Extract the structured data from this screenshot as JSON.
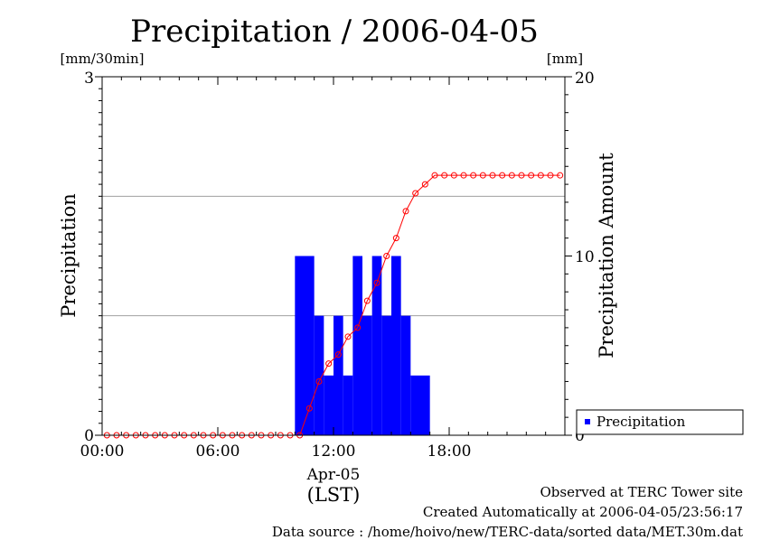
{
  "chart_data": {
    "type": "bar",
    "title": "Precipitation / 2006-04-05",
    "left_axis": {
      "label": "Precipitation",
      "unit": "[mm/30min]",
      "range": [
        0,
        3
      ],
      "ticks": [
        "0",
        "3"
      ],
      "gridlines": [
        1,
        2
      ]
    },
    "right_axis": {
      "label": "Precipitation Amount",
      "unit": "[mm]",
      "range": [
        0,
        20
      ],
      "ticks": [
        "0",
        "10",
        "20"
      ]
    },
    "x_axis": {
      "range_hours": [
        0,
        24
      ],
      "ticks": [
        {
          "hour": 0,
          "label": "00:00"
        },
        {
          "hour": 6,
          "label": "06:00"
        },
        {
          "hour": 12,
          "label": "12:00"
        },
        {
          "hour": 18,
          "label": "18:00"
        }
      ],
      "date_label": "Apr-05",
      "unit": "(LST)"
    },
    "series": [
      {
        "name": "Precipitation",
        "type": "bar",
        "axis": "left",
        "color": "#0000ff",
        "interval_hours": 0.5,
        "start_hours": [
          10.0,
          10.5,
          11.0,
          11.5,
          12.0,
          12.5,
          13.0,
          13.5,
          14.0,
          14.5,
          15.0,
          15.5,
          16.0,
          16.5
        ],
        "values": [
          1.5,
          1.5,
          1.0,
          0.5,
          1.0,
          0.5,
          1.5,
          1.0,
          1.5,
          1.0,
          1.5,
          1.0,
          0.5,
          0.5
        ]
      },
      {
        "type": "line",
        "axis": "right",
        "color": "#ff0000",
        "marker": "open-circle",
        "x_hours": [
          0.0,
          0.5,
          1.0,
          1.5,
          2.0,
          2.5,
          3.0,
          3.5,
          4.0,
          4.5,
          5.0,
          5.5,
          6.0,
          6.5,
          7.0,
          7.5,
          8.0,
          8.5,
          9.0,
          9.5,
          10.0,
          10.5,
          11.0,
          11.5,
          12.0,
          12.5,
          13.0,
          13.5,
          14.0,
          14.5,
          15.0,
          15.5,
          16.0,
          16.5,
          17.0,
          17.5,
          18.0,
          18.5,
          19.0,
          19.5,
          20.0,
          20.5,
          21.0,
          21.5,
          22.0,
          22.5,
          23.0,
          23.5
        ],
        "values": [
          0,
          0,
          0,
          0,
          0,
          0,
          0,
          0,
          0,
          0,
          0,
          0,
          0,
          0,
          0,
          0,
          0,
          0,
          0,
          0,
          0,
          1.5,
          3.0,
          4.0,
          4.5,
          5.5,
          6.0,
          7.5,
          8.5,
          10.0,
          11.0,
          12.5,
          13.5,
          14.0,
          14.5,
          14.5,
          14.5,
          14.5,
          14.5,
          14.5,
          14.5,
          14.5,
          14.5,
          14.5,
          14.5,
          14.5,
          14.5,
          14.5
        ]
      }
    ],
    "legend": {
      "placement": "bottom-right",
      "entries": [
        "Precipitation"
      ]
    },
    "grid": true
  },
  "footer": {
    "line1": "Observed at TERC Tower site",
    "line2": "Created Automatically at 2006-04-05/23:56:17",
    "line3": "Data source : /home/hoivo/new/TERC-data/sorted  data/MET.30m.dat"
  }
}
